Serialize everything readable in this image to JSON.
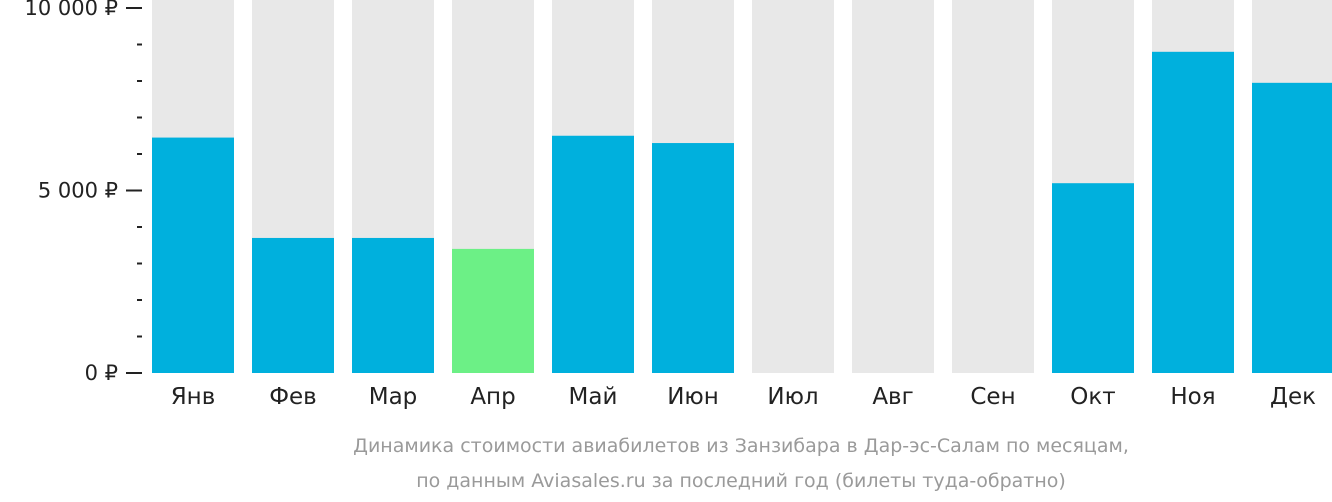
{
  "chart_data": {
    "type": "bar",
    "categories": [
      "Янв",
      "Фев",
      "Мар",
      "Апр",
      "Май",
      "Июн",
      "Июл",
      "Авг",
      "Сен",
      "Окт",
      "Ноя",
      "Дек"
    ],
    "values": [
      6450,
      3700,
      3700,
      3400,
      6500,
      6300,
      null,
      null,
      null,
      5200,
      8800,
      7950
    ],
    "ylim": [
      0,
      10000
    ],
    "yticks": [
      0,
      5000,
      10000
    ],
    "ytick_labels": [
      "0 ₽",
      "5 000 ₽",
      "10 000 ₽"
    ],
    "minor_ticks_per_major": 5,
    "highlight_category": "Апр",
    "caption_line1": "Динамика стоимости авиабилетов из Занзибара в Дар-эс-Салам по месяцам,",
    "caption_line2": "по данным Aviasales.ru за последний год (билеты туда-обратно)",
    "colors": {
      "bar": "#00b0dd",
      "highlight": "#6cf086",
      "background_bar": "#e8e8e8",
      "axis": "#222222",
      "caption": "#9a9a9a"
    }
  }
}
